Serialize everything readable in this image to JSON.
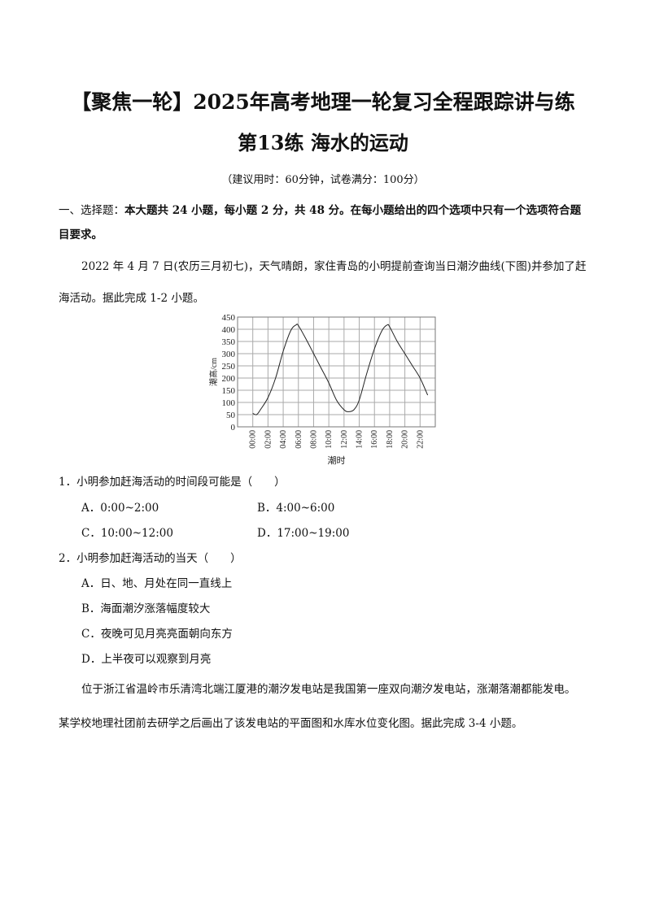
{
  "header": {
    "title": "【聚焦一轮】2025年高考地理一轮复习全程跟踪讲与练",
    "subtitle": "第13练  海水的运动",
    "note": "（建议用时：60分钟，试卷满分：100分）"
  },
  "section": {
    "prefix": "一、选择题：",
    "bold": "本大题共 24 小题，每小题 2 分，共 48 分。在每小题给出的四个选项中只有一个选项符合题",
    "line2": "目要求。"
  },
  "intro1": {
    "line1": "2022 年 4 月 7 日(农历三月初七)，天气晴朗，家住青岛的小明提前查询当日潮汐曲线(下图)并参加了赶",
    "line2": "海活动。据此完成 1-2 小题。"
  },
  "chart_data": {
    "type": "line",
    "xlabel": "潮时",
    "ylabel": "潮高/cm",
    "ylim": [
      0,
      450
    ],
    "xlim": [
      -2,
      24
    ],
    "grid": true,
    "yticks": [
      "0",
      "50",
      "100",
      "150",
      "200",
      "250",
      "300",
      "350",
      "400",
      "450"
    ],
    "xticks": [
      "00:00",
      "02:00",
      "04:00",
      "06:00",
      "08:00",
      "10:00",
      "12:00",
      "14:00",
      "16:00",
      "18:00",
      "20:00",
      "22:00"
    ],
    "x_hours": [
      0,
      0.5,
      1,
      2,
      3,
      4,
      5,
      5.7,
      6,
      7,
      8,
      9,
      10,
      11,
      12,
      12.6,
      13.3,
      14,
      15,
      16,
      17,
      17.7,
      18,
      19,
      20,
      21,
      22,
      23
    ],
    "y_cm": [
      55,
      50,
      70,
      120,
      200,
      310,
      395,
      418,
      415,
      360,
      300,
      240,
      180,
      110,
      70,
      62,
      70,
      110,
      220,
      320,
      395,
      418,
      410,
      350,
      300,
      250,
      200,
      130
    ]
  },
  "q1": {
    "stem": "1．小明参加赶海活动的时间段可能是（　　）",
    "options": [
      "A．0:00~2:00",
      "B．4:00~6:00",
      "C．10:00~12:00",
      "D．17:00~19:00"
    ]
  },
  "q2": {
    "stem": "2．小明参加赶海活动的当天（　　）",
    "options": [
      "A．日、地、月处在同一直线上",
      "B．海面潮汐涨落幅度较大",
      "C．夜晚可见月亮亮面朝向东方",
      "D．上半夜可以观察到月亮"
    ]
  },
  "intro2": {
    "line1": "位于浙江省温岭市乐清湾北端江厦港的潮汐发电站是我国第一座双向潮汐发电站，涨潮落潮都能发电。",
    "line2": "某学校地理社团前去研学之后画出了该发电站的平面图和水库水位变化图。据此完成 3-4 小题。"
  }
}
